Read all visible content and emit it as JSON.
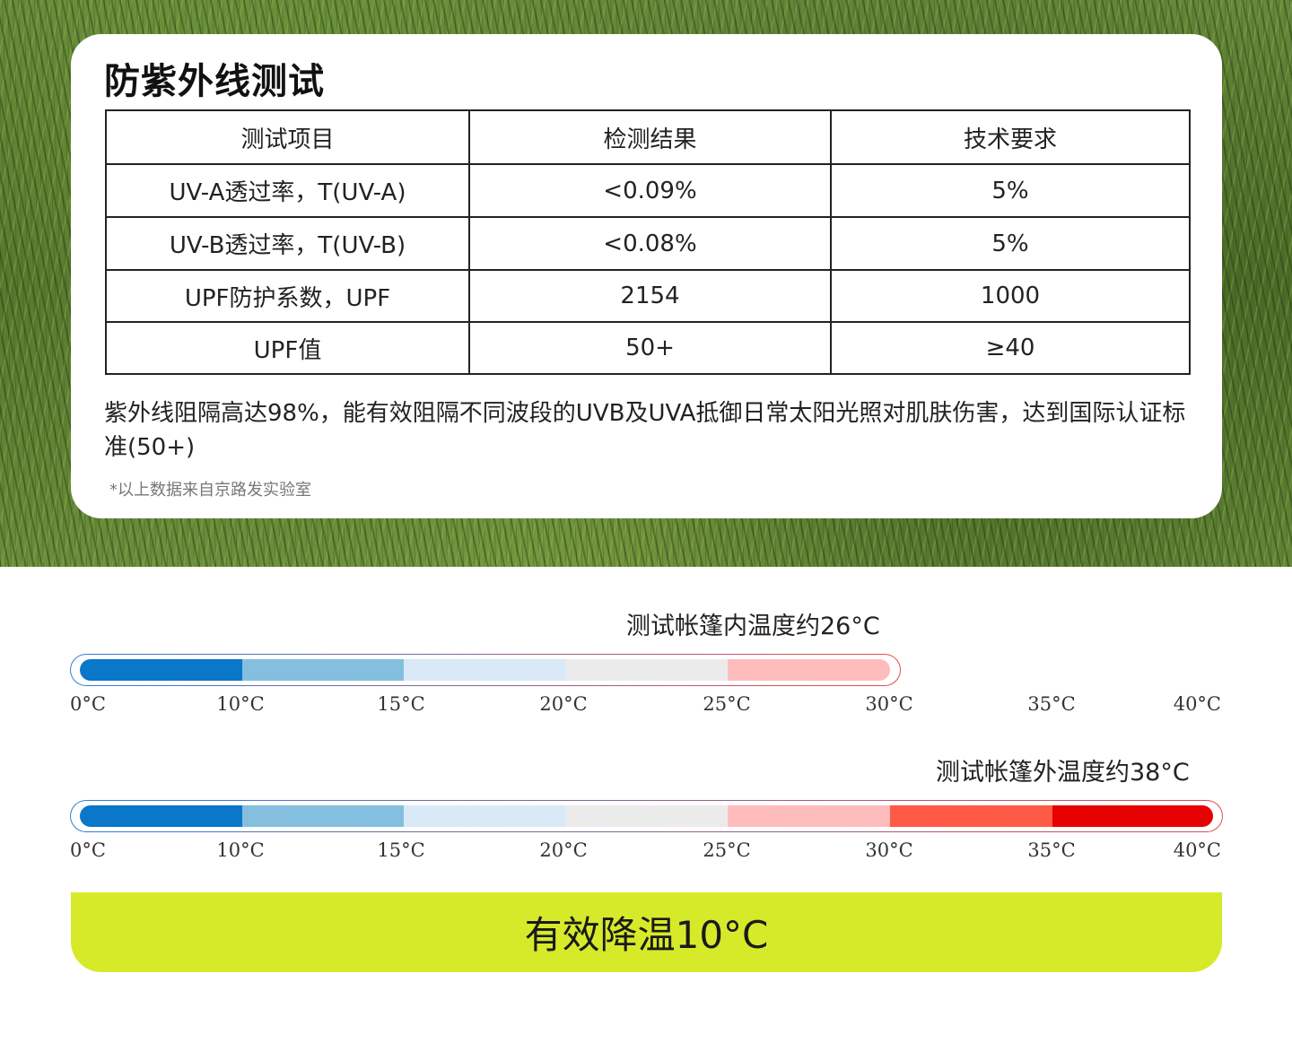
{
  "uv_test": {
    "title": "防紫外线测试",
    "headers": [
      "测试项目",
      "检测结果",
      "技术要求"
    ],
    "rows": [
      [
        "UV-A透过率，T(UV-A)",
        "<0.09%",
        "5%"
      ],
      [
        "UV-B透过率，T(UV-B)",
        "<0.08%",
        "5%"
      ],
      [
        "UPF防护系数，UPF",
        "2154",
        "1000"
      ],
      [
        "UPF值",
        "50+",
        "≥40"
      ]
    ],
    "description": "紫外线阻隔高达98%，能有效阻隔不同波段的UVB及UVA抵御日常太阳光照对肌肤伤害，达到国际认证标准(50+)",
    "note": "*以上数据来自京路发实验室"
  },
  "temperature": {
    "scale_labels": [
      "0°C",
      "10°C",
      "15°C",
      "20°C",
      "25°C",
      "30°C",
      "35°C",
      "40°C"
    ],
    "colors": [
      "#0a77c8",
      "#84bfe0",
      "#d9e9f7",
      "#ebebeb",
      "#ffbcbc",
      "#ff5a45",
      "#e60000"
    ],
    "inside": {
      "caption": "测试帐篷内温度约26°C",
      "filled_segments": 5
    },
    "outside": {
      "caption": "测试帐篷外温度约38°C",
      "filled_segments": 7
    }
  },
  "banner": {
    "text": "有效降温10°C"
  }
}
